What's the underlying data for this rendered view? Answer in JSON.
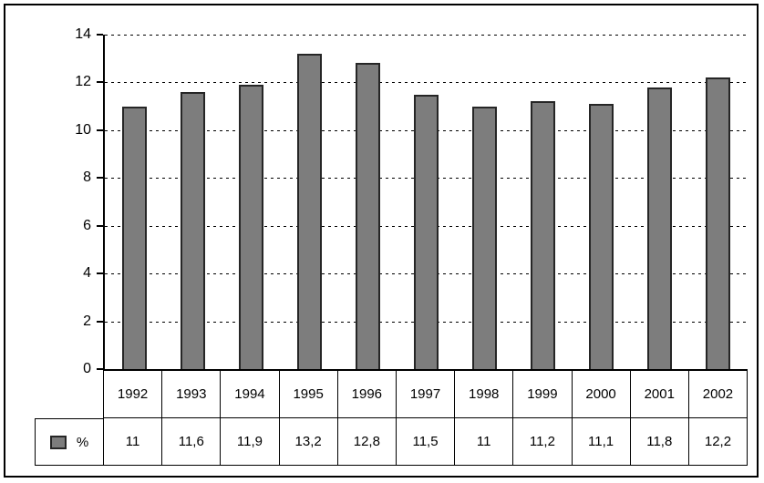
{
  "chart_data": {
    "type": "bar",
    "title": "",
    "xlabel": "",
    "ylabel": "",
    "categories": [
      "1992",
      "1993",
      "1994",
      "1995",
      "1996",
      "1997",
      "1998",
      "1999",
      "2000",
      "2001",
      "2002"
    ],
    "values": [
      11,
      11.6,
      11.9,
      13.2,
      12.8,
      11.5,
      11,
      11.2,
      11.1,
      11.8,
      12.2
    ],
    "value_labels": [
      "11",
      "11,6",
      "11,9",
      "13,2",
      "12,8",
      "11,5",
      "11",
      "11,2",
      "11,1",
      "11,8",
      "12,2"
    ],
    "legend_label": "%",
    "legend_position": "bottom-left",
    "ylim": [
      0,
      14
    ],
    "yticks": [
      0,
      2,
      4,
      6,
      8,
      10,
      12,
      14
    ],
    "grid": "horizontal-dashed",
    "bar_color": "#7d7d7d",
    "bar_border_color": "#262626",
    "frame_color": "#000000",
    "background_color": "#ffffff"
  }
}
